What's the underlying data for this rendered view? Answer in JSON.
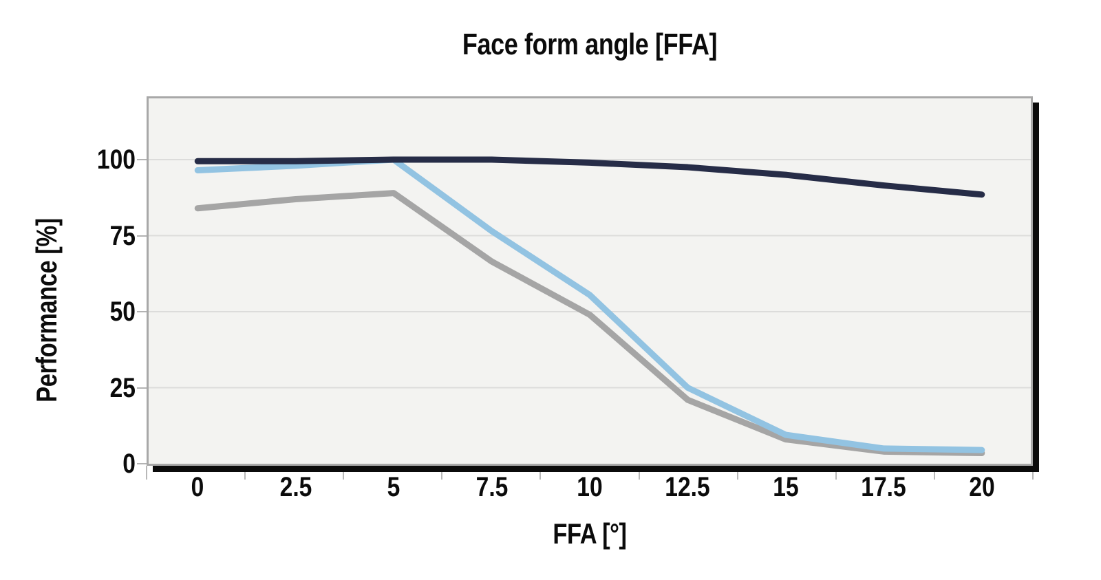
{
  "chart_data": {
    "type": "line",
    "title": "Face form angle [FFA]",
    "xlabel": "FFA [°]",
    "ylabel": "Performance [%]",
    "categories": [
      0,
      2.5,
      5,
      7.5,
      10,
      12.5,
      15,
      17.5,
      20
    ],
    "x_tick_labels": [
      "0",
      "2.5",
      "5",
      "7.5",
      "10",
      "12.5",
      "15",
      "17.5",
      "20"
    ],
    "y_ticks": [
      0,
      25,
      50,
      75,
      100
    ],
    "ylim": [
      0,
      120
    ],
    "grid": "horizontal",
    "legend": "none",
    "series": [
      {
        "name": "dark-navy-line",
        "color": "#262c47",
        "values": [
          99.5,
          99.5,
          100,
          100,
          99,
          97.5,
          95,
          91.5,
          88.5
        ]
      },
      {
        "name": "light-blue-line",
        "color": "#92c3e2",
        "values": [
          96.5,
          98,
          100,
          76.5,
          55.5,
          25,
          9.5,
          5,
          4.5
        ]
      },
      {
        "name": "gray-line",
        "color": "#a5a5a5",
        "values": [
          84,
          87,
          89,
          66.5,
          49,
          21,
          8,
          4,
          3.5
        ]
      }
    ],
    "colors": {
      "page_bg": "#ffffff",
      "plot_bg": "#f3f3f1",
      "plot_border": "#a8a8a8",
      "shadow": "#0b0b0b",
      "grid": "#dcdcdb",
      "tick": "#b8b8b8",
      "text": "#0b0b0b"
    }
  }
}
